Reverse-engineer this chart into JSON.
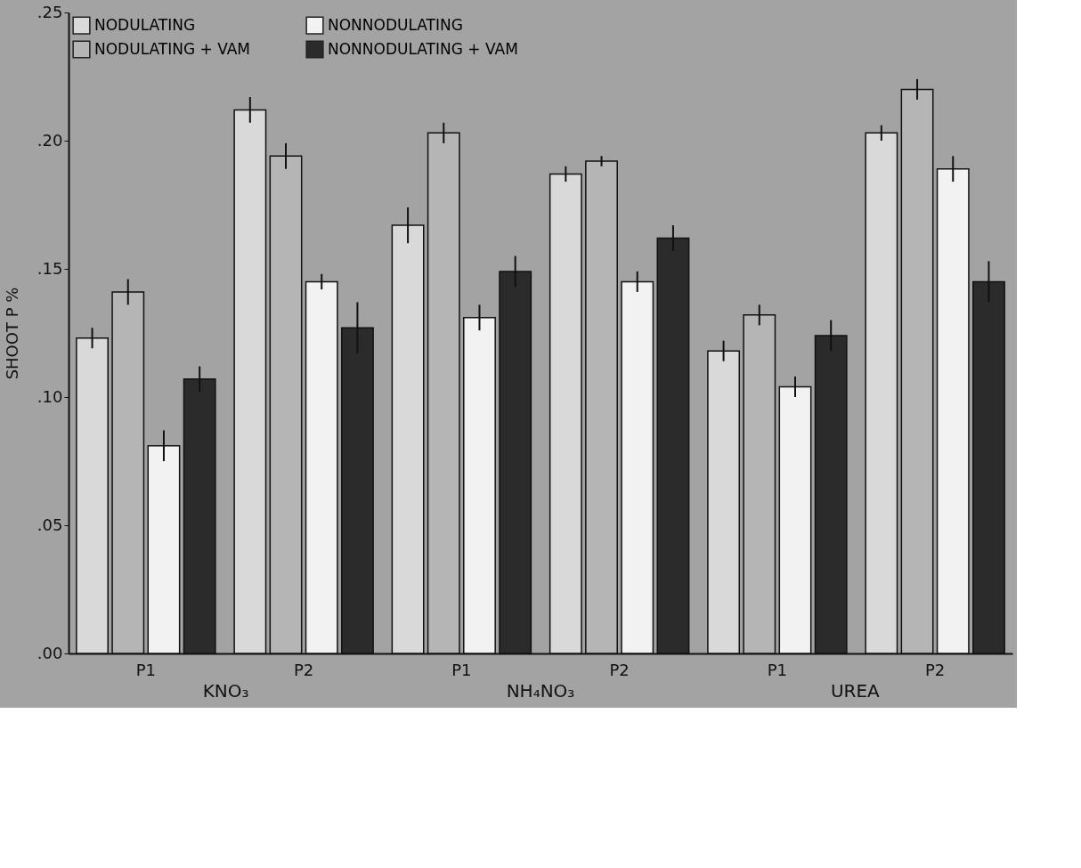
{
  "chart_data": {
    "type": "bar",
    "ylabel": "SHOOT P %",
    "categories": [
      "P1",
      "P2",
      "P1",
      "P2",
      "P1",
      "P2"
    ],
    "series": [
      {
        "name": "NODULATING",
        "color": "#d9d9d9",
        "values": [
          0.123,
          0.212,
          0.167,
          0.187,
          0.118,
          0.203
        ],
        "errors": [
          0.004,
          0.005,
          0.007,
          0.003,
          0.004,
          0.003
        ]
      },
      {
        "name": "NODULATING + VAM",
        "color": "#b5b5b5",
        "values": [
          0.141,
          0.194,
          0.203,
          0.192,
          0.132,
          0.22
        ],
        "errors": [
          0.005,
          0.005,
          0.004,
          0.002,
          0.004,
          0.004
        ]
      },
      {
        "name": "NONNODULATING",
        "color": "#f2f2f2",
        "values": [
          0.081,
          0.145,
          0.131,
          0.145,
          0.104,
          0.189
        ],
        "errors": [
          0.006,
          0.003,
          0.005,
          0.004,
          0.004,
          0.005
        ]
      },
      {
        "name": "NONNODULATING + VAM",
        "color": "#2b2b2b",
        "values": [
          0.107,
          0.127,
          0.149,
          0.162,
          0.124,
          0.145
        ],
        "errors": [
          0.005,
          0.01,
          0.006,
          0.005,
          0.006,
          0.008
        ]
      }
    ],
    "annotations": [
      "KNO₃",
      "NH₄NO₃",
      "UREA"
    ],
    "ylim": [
      0,
      0.25
    ],
    "yticks": [
      {
        "value": 0,
        "label": ".00"
      },
      {
        "value": 0.05,
        "label": ".05"
      },
      {
        "value": 0.1,
        "label": ".10"
      },
      {
        "value": 0.15,
        "label": ".15"
      },
      {
        "value": 0.2,
        "label": ".20"
      },
      {
        "value": 0.25,
        "label": ".25"
      }
    ],
    "legend": "top left",
    "grid": false
  }
}
